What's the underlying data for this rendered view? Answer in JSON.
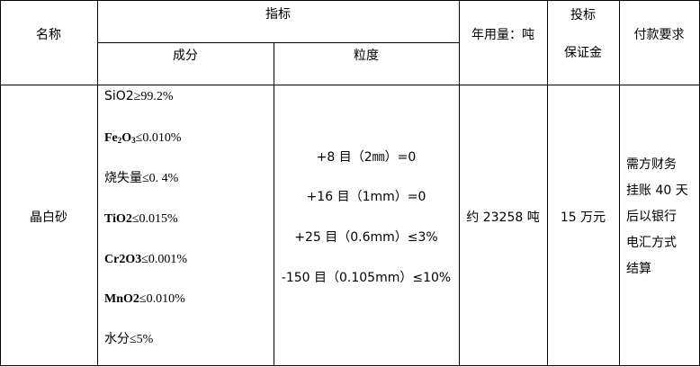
{
  "headers": {
    "name": "名称",
    "indicator": "指标",
    "composition": "成分",
    "granularity": "粒度",
    "annual_usage": "年用量：吨",
    "bid_deposit_line1": "投标",
    "bid_deposit_line2": "保证金",
    "payment": "付款要求"
  },
  "row": {
    "name": "晶白砂",
    "composition": [
      {
        "label": "SiO2",
        "value": "≥99.2%"
      },
      {
        "label": "Fe",
        "sub1": "2",
        "mid": "O",
        "sub2": "3",
        "value": "≤0.010%"
      },
      {
        "label": "烧失量",
        "value": "≤0. 4%"
      },
      {
        "label": "TiO2",
        "value": "≤0.015%"
      },
      {
        "label": "Cr2O3",
        "value": "≤0.001%"
      },
      {
        "label": "MnO2",
        "value": "≤0.010%"
      },
      {
        "label": "水分",
        "value": "≤5%"
      }
    ],
    "granularity": [
      "+8 目（2㎜）=0",
      "+16 目（1mm）=0",
      "+25 目（0.6mm）≤3%",
      "-150 目（0.105mm）≤10%"
    ],
    "annual_usage": "约 23258 吨",
    "bid_deposit": "15 万元",
    "payment": [
      "需方财务",
      "挂账 40 天",
      "后以银行",
      "电汇方式",
      "结算"
    ]
  }
}
